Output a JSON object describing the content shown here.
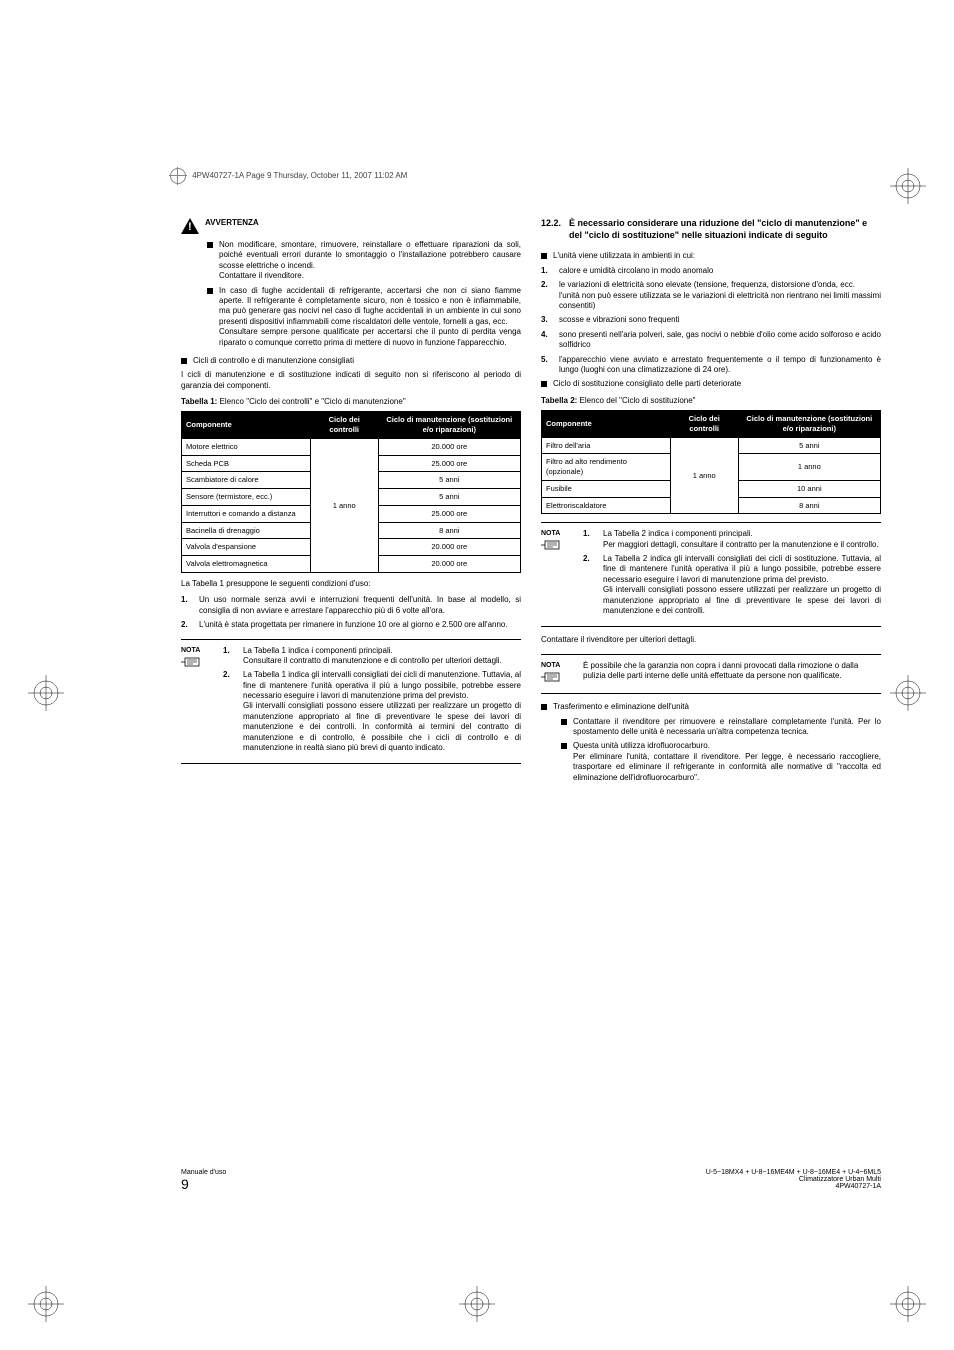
{
  "header_meta": "4PW40727-1A  Page 9  Thursday, October 11, 2007  11:02 AM",
  "warning": {
    "title": "AVVERTENZA",
    "items": [
      "Non modificare, smontare, rimuovere, reinstallare o effettuare riparazioni da soli, poiché eventuali errori durante lo smontaggio o l'installazione potrebbero causare scosse elettriche o incendi.\nContattare il rivenditore.",
      "In caso di fughe accidentali di refrigerante, accertarsi che non ci siano fiamme aperte. Il refrigerante è completamente sicuro, non è tossico e non è infiammabile, ma può generare gas nocivi nel caso di fughe accidentali in un ambiente in cui sono presenti dispositivi infiammabili come riscaldatori delle ventole, fornelli a gas, ecc.\nConsultare sempre persone qualificate per accertarsi che il punto di perdita venga riparato o comunque corretto prima di mettere di nuovo in funzione l'apparecchio."
    ]
  },
  "cycles_intro_bullet": "Cicli di controllo e di manutenzione consigliati",
  "cycles_intro": "I cicli di manutenzione e di sostituzione indicati di seguito non si riferiscono al periodo di garanzia dei componenti.",
  "table1": {
    "caption_bold": "Tabella 1:",
    "caption_rest": "Elenco \"Ciclo dei controlli\" e \"Ciclo di manutenzione\"",
    "headers": [
      "Componente",
      "Ciclo dei controlli",
      "Ciclo di manutenzione (sostituzioni e/o riparazioni)"
    ],
    "cycle_value": "1 anno",
    "rows": [
      [
        "Motore elettrico",
        "20.000 ore"
      ],
      [
        "Scheda PCB",
        "25.000 ore"
      ],
      [
        "Scambiatore di calore",
        "5 anni"
      ],
      [
        "Sensore (termistore, ecc.)",
        "5 anni"
      ],
      [
        "Interruttori e comando a distanza",
        "25.000 ore"
      ],
      [
        "Bacinella di drenaggio",
        "8 anni"
      ],
      [
        "Valvola d'espansione",
        "20.000 ore"
      ],
      [
        "Valvola elettromagnetica",
        "20.000 ore"
      ]
    ]
  },
  "table1_post": "La Tabella 1 presuppone le seguenti condizioni d'uso:",
  "table1_conditions": [
    "Un uso normale senza avvii e interruzioni frequenti dell'unità. In base al modello, si consiglia di non avviare e arrestare l'apparecchio più di 6 volte all'ora.",
    "L'unità è stata progettata per rimanere in funzione 10 ore al giorno e 2.500 ore all'anno."
  ],
  "note1": {
    "label": "NOTA",
    "items": [
      "La Tabella 1 indica i componenti principali.\nConsultare il contratto di manutenzione e di controllo per ulteriori dettagli.",
      "La Tabella 1 indica gli intervalli consigliati dei cicli di manutenzione. Tuttavia, al fine di mantenere l'unità operativa il più a lungo possibile, potrebbe essere necessario eseguire i lavori di manutenzione prima del previsto.\nGli intervalli consigliati possono essere utilizzati per realizzare un progetto di manutenzione appropriato al fine di preventivare le spese dei lavori di manutenzione e dei controlli. In conformità ai termini del contratto di manutenzione e di controllo, è possibile che i cicli di controllo e di manutenzione in realtà siano più brevi di quanto indicato."
    ]
  },
  "section12_2": {
    "num": "12.2.",
    "title": "È necessario considerare una riduzione del \"ciclo di manutenzione\" e del \"ciclo di sostituzione\" nelle situazioni indicate di seguito"
  },
  "env_intro": "L'unità viene utilizzata in ambienti in cui:",
  "env_items": [
    "calore e umidità circolano in modo anomalo",
    "le variazioni di elettricità sono elevate (tensione, frequenza, distorsione d'onda, ecc.\nl'unità non può essere utilizzata se le variazioni di elettricità non rientrano nei limiti massimi consentiti)",
    "scosse e vibrazioni sono frequenti",
    "sono presenti nell'aria polveri, sale, gas nocivi o nebbie d'olio come acido solforoso e acido solfidrico",
    "l'apparecchio viene avviato e arrestato frequentemente o il tempo di funzionamento è lungo (luoghi con una climatizzazione di 24 ore)."
  ],
  "repl_bullet": "Ciclo di sostituzione consigliato delle parti deteriorate",
  "table2": {
    "caption_bold": "Tabella 2:",
    "caption_rest": "Elenco del \"Ciclo di sostituzione\"",
    "headers": [
      "Componente",
      "Ciclo dei controlli",
      "Ciclo di manutenzione (sostituzioni e/o riparazioni)"
    ],
    "cycle_value": "1 anno",
    "rows": [
      [
        "Filtro dell'aria",
        "5 anni"
      ],
      [
        "Filtro ad alto rendimento (opzionale)",
        "1 anno"
      ],
      [
        "Fusibile",
        "10 anni"
      ],
      [
        "Elettroriscaldatore",
        "8 anni"
      ]
    ]
  },
  "note2": {
    "label": "NOTA",
    "items": [
      "La Tabella 2 indica i componenti principali.\nPer maggiori dettagli, consultare il contratto per la manutenzione e il controllo.",
      "La Tabella 2 indica gli intervalli consigliati dei cicli di sostituzione. Tuttavia, al fine di mantenere l'unità operativa il più a lungo possibile, potrebbe essere necessario eseguire i lavori di manutenzione prima del previsto.\nGli intervalli consigliati possono essere utilizzati per realizzare un progetto di manutenzione appropriato al fine di preventivare le spese dei lavori di manutenzione e dei controlli."
    ]
  },
  "contact_line": "Contattare il rivenditore per ulteriori dettagli.",
  "note3": {
    "label": "NOTA",
    "text": "È possibile che la garanzia non copra i danni provocati dalla rimozione o dalla pulizia delle parti interne delle unità effettuate da persone non qualificate."
  },
  "transfer_bullet": "Trasferimento e eliminazione dell'unità",
  "transfer_items": [
    "Contattare il rivenditore per rimuovere e reinstallare completamente l'unità. Per lo spostamento delle unità è necessaria un'altra competenza tecnica.",
    "Questa unità utilizza idrofluorocarburo.\nPer eliminare l'unità, contattare il rivenditore. Per legge, è necessario raccogliere, trasportare ed eliminare il refrigerante in conformità alle normative di \"raccolta ed eliminazione dell'idrofluorocarburo\"."
  ],
  "footer": {
    "left_top": "Manuale d'uso",
    "left_num": "9",
    "right1": "U-5~18MX4 + U-8~16ME4M + U-8~16ME4 + U-4~6ML5",
    "right2": "Climatizzatore Urban Multi",
    "right3": "4PW40727-1A"
  }
}
